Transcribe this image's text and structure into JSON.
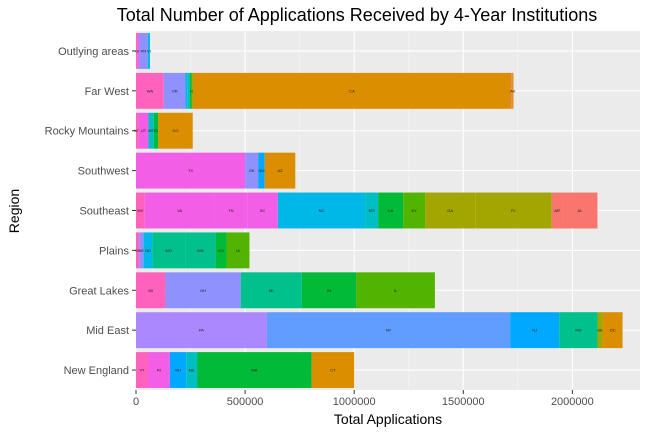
{
  "chart_data": {
    "type": "bar",
    "orientation": "horizontal",
    "stacked": true,
    "title": "Total Number of Applications Received by 4-Year Institutions",
    "xlabel": "Total Applications",
    "ylabel": "Region",
    "xlim": [
      0,
      2310000
    ],
    "xticks": [
      0,
      500000,
      1000000,
      1500000,
      2000000
    ],
    "xtick_labels": [
      "0",
      "500000",
      "1000000",
      "1500000",
      "2000000"
    ],
    "grid": true,
    "legend": "none",
    "colors": {
      "panel": "#ebebeb",
      "grid_major": "#ffffff",
      "grid_minor": "#f5f5f5",
      "pink": "#FF62BC",
      "magenta": "#F35EE6",
      "purple": "#AC88FF",
      "violet": "#8F91FF",
      "blue": "#619CFF",
      "skyblue": "#00A9FF",
      "cyan": "#00B8E7",
      "teal": "#00BFC4",
      "green": "#00BA38",
      "seagreen": "#00C08B",
      "lime": "#53B400",
      "olive": "#A3A500",
      "orange": "#DB8E00",
      "salmon": "#F8766D"
    },
    "categories": [
      "Outlying areas",
      "Far West",
      "Rocky Mountains",
      "Southwest",
      "Southeast",
      "Plains",
      "Great Lakes",
      "Mid East",
      "New England"
    ],
    "series": [
      {
        "category": "Outlying areas",
        "segments": [
          {
            "label": "",
            "value": 6000,
            "color": "#FF62BC"
          },
          {
            "label": "GU",
            "value": 8000,
            "color": "#F35EE6"
          },
          {
            "label": "PR",
            "value": 40000,
            "color": "#8F91FF"
          },
          {
            "label": "VI",
            "value": 10000,
            "color": "#00B8E7"
          }
        ]
      },
      {
        "category": "Far West",
        "segments": [
          {
            "label": "WA",
            "value": 127000,
            "color": "#FF62BC"
          },
          {
            "label": "OR",
            "value": 100000,
            "color": "#8F91FF"
          },
          {
            "label": "",
            "value": 10000,
            "color": "#00B8E7"
          },
          {
            "label": "",
            "value": 10000,
            "color": "#00BFC4"
          },
          {
            "label": "",
            "value": 5000,
            "color": "#00BA38"
          },
          {
            "label": "HI",
            "value": 8000,
            "color": "#53B400"
          },
          {
            "label": "CA",
            "value": 1460000,
            "color": "#DB8E00"
          },
          {
            "label": "",
            "value": 5000,
            "color": "#F8766D"
          },
          {
            "label": "AK",
            "value": 5000,
            "color": "#DB8E00"
          }
        ]
      },
      {
        "category": "Rocky Mountains",
        "segments": [
          {
            "label": "WY",
            "value": 12000,
            "color": "#FF62BC"
          },
          {
            "label": "UT",
            "value": 45000,
            "color": "#F35EE6"
          },
          {
            "label": "MT",
            "value": 25000,
            "color": "#00BFC4"
          },
          {
            "label": "ID",
            "value": 20000,
            "color": "#00BA38"
          },
          {
            "label": "CO",
            "value": 158000,
            "color": "#DB8E00"
          }
        ]
      },
      {
        "category": "Southwest",
        "segments": [
          {
            "label": "TX",
            "value": 500000,
            "color": "#F35EE6"
          },
          {
            "label": "OK",
            "value": 60000,
            "color": "#8F91FF"
          },
          {
            "label": "NM",
            "value": 30000,
            "color": "#00A9FF"
          },
          {
            "label": "AZ",
            "value": 140000,
            "color": "#DB8E00"
          }
        ]
      },
      {
        "category": "Southeast",
        "segments": [
          {
            "label": "WV",
            "value": 40000,
            "color": "#FF62BC"
          },
          {
            "label": "VA",
            "value": 320000,
            "color": "#F35EE6"
          },
          {
            "label": "TN",
            "value": 150000,
            "color": "#F35EE6"
          },
          {
            "label": "SC",
            "value": 140000,
            "color": "#F35EE6"
          },
          {
            "label": "NC",
            "value": 400000,
            "color": "#00B8E7"
          },
          {
            "label": "MS",
            "value": 60000,
            "color": "#00BFC4"
          },
          {
            "label": "LA",
            "value": 115000,
            "color": "#00BA38"
          },
          {
            "label": "KY",
            "value": 100000,
            "color": "#53B400"
          },
          {
            "label": "GA",
            "value": 230000,
            "color": "#A3A500"
          },
          {
            "label": "FL",
            "value": 350000,
            "color": "#A3A500"
          },
          {
            "label": "AR",
            "value": 50000,
            "color": "#F8766D"
          },
          {
            "label": "AL",
            "value": 160000,
            "color": "#F8766D"
          }
        ]
      },
      {
        "category": "Plains",
        "segments": [
          {
            "label": "SD",
            "value": 15000,
            "color": "#FF62BC"
          },
          {
            "label": "NE",
            "value": 20000,
            "color": "#8F91FF"
          },
          {
            "label": "ND",
            "value": 40000,
            "color": "#00B8E7"
          },
          {
            "label": "MO",
            "value": 150000,
            "color": "#00C08B"
          },
          {
            "label": "MN",
            "value": 140000,
            "color": "#00C08B"
          },
          {
            "label": "KS",
            "value": 50000,
            "color": "#00BA38"
          },
          {
            "label": "IA",
            "value": 105000,
            "color": "#53B400"
          }
        ]
      },
      {
        "category": "Great Lakes",
        "segments": [
          {
            "label": "WI",
            "value": 135000,
            "color": "#FF62BC"
          },
          {
            "label": "OH",
            "value": 345000,
            "color": "#8F91FF"
          },
          {
            "label": "MI",
            "value": 280000,
            "color": "#00C08B"
          },
          {
            "label": "IN",
            "value": 250000,
            "color": "#00BA38"
          },
          {
            "label": "IL",
            "value": 360000,
            "color": "#53B400"
          }
        ]
      },
      {
        "category": "Mid East",
        "segments": [
          {
            "label": "PA",
            "value": 600000,
            "color": "#AC88FF"
          },
          {
            "label": "NY",
            "value": 1115000,
            "color": "#619CFF"
          },
          {
            "label": "NJ",
            "value": 225000,
            "color": "#00A9FF"
          },
          {
            "label": "MD",
            "value": 175000,
            "color": "#00C08B"
          },
          {
            "label": "DE",
            "value": 25000,
            "color": "#A3A500"
          },
          {
            "label": "DC",
            "value": 90000,
            "color": "#DB8E00"
          }
        ]
      },
      {
        "category": "New England",
        "segments": [
          {
            "label": "VT",
            "value": 55000,
            "color": "#FF62BC"
          },
          {
            "label": "RI",
            "value": 100000,
            "color": "#F35EE6"
          },
          {
            "label": "NH",
            "value": 75000,
            "color": "#00A9FF"
          },
          {
            "label": "ME",
            "value": 50000,
            "color": "#00BFC4"
          },
          {
            "label": "MA",
            "value": 525000,
            "color": "#00BA38"
          },
          {
            "label": "CT",
            "value": 195000,
            "color": "#DB8E00"
          }
        ]
      }
    ]
  }
}
